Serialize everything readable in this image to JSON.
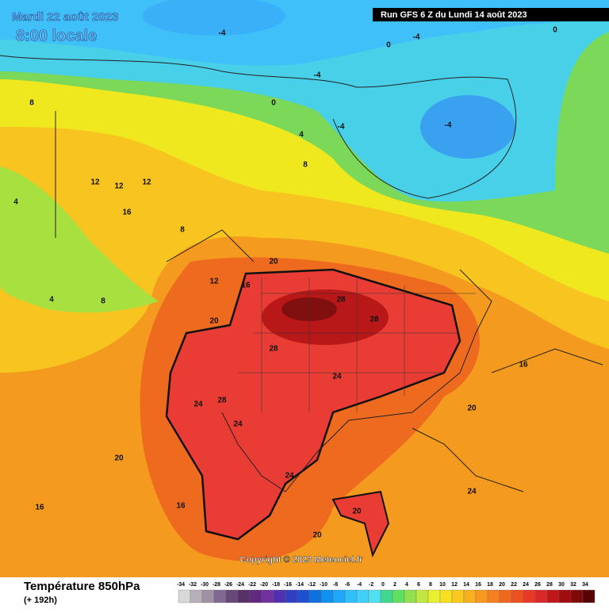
{
  "header": {
    "date": "Mardi 22 août 2023",
    "time": "8:00 locale",
    "run": "Run GFS 6 Z du Lundi 14 août 2023"
  },
  "copyright": "Copyright © 2023 Meteociel.fr",
  "legend": {
    "title": "Température 850hPa",
    "subtitle": "(+ 192h)",
    "ticks": [
      -34,
      -32,
      -30,
      -28,
      -26,
      -24,
      -22,
      -20,
      -18,
      -16,
      -14,
      -12,
      -10,
      -8,
      -6,
      -4,
      -2,
      0,
      2,
      4,
      6,
      8,
      10,
      12,
      14,
      16,
      18,
      20,
      22,
      24,
      26,
      28,
      30,
      32,
      34
    ],
    "colors": [
      "#d8d8d8",
      "#b8b0b8",
      "#a090a8",
      "#806890",
      "#684878",
      "#583068",
      "#602880",
      "#7030a0",
      "#5030b0",
      "#3040c0",
      "#2050d0",
      "#1070e0",
      "#1090f0",
      "#20a8f8",
      "#30c0f8",
      "#40d0f8",
      "#50e0f0",
      "#40d890",
      "#60e060",
      "#90e050",
      "#c0e840",
      "#e8f030",
      "#f8e020",
      "#f8c820",
      "#f8b020",
      "#f89820",
      "#f48020",
      "#f06820",
      "#ec5020",
      "#e83828",
      "#d82828",
      "#c01818",
      "#a00c10",
      "#800808",
      "#580404"
    ]
  },
  "contour_labels": [
    -4,
    -4,
    -4,
    -4,
    -4,
    0,
    0,
    0,
    4,
    4,
    4,
    8,
    8,
    8,
    8,
    12,
    12,
    12,
    12,
    16,
    16,
    16,
    16,
    16,
    20,
    20,
    20,
    20,
    20,
    20,
    24,
    24,
    24,
    24,
    24,
    28,
    28,
    28,
    28
  ]
}
